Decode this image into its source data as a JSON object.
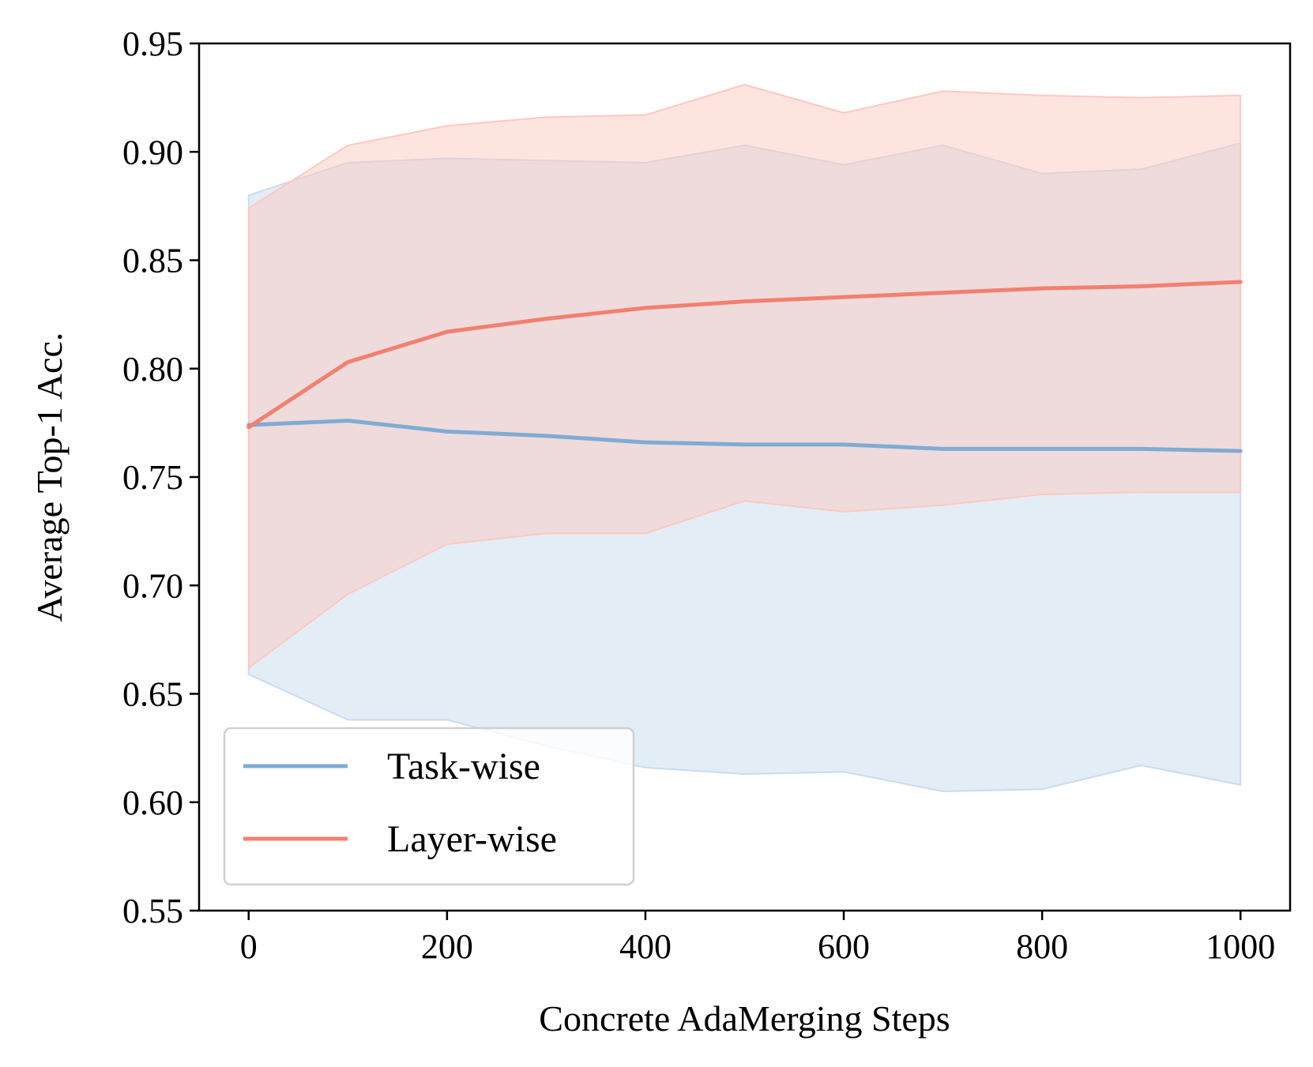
{
  "chart_data": {
    "type": "line",
    "xlabel": "Concrete AdaMerging Steps",
    "ylabel": "Average Top-1 Acc.",
    "xlim": [
      -50,
      1050
    ],
    "ylim": [
      0.55,
      0.95
    ],
    "xticks": [
      "0",
      "200",
      "400",
      "600",
      "800",
      "1000"
    ],
    "yticks": [
      "0.55",
      "0.60",
      "0.65",
      "0.70",
      "0.75",
      "0.80",
      "0.85",
      "0.90",
      "0.95"
    ],
    "grid": false,
    "legend_position": "lower-left",
    "x": [
      0,
      100,
      200,
      300,
      400,
      500,
      600,
      700,
      800,
      900,
      1000
    ],
    "series": [
      {
        "name": "Task-wise",
        "color": "#7eacd4",
        "band_color": "#c8dcee",
        "values": [
          0.774,
          0.776,
          0.771,
          0.769,
          0.766,
          0.765,
          0.765,
          0.763,
          0.763,
          0.763,
          0.762
        ],
        "upper": [
          0.88,
          0.895,
          0.897,
          0.896,
          0.895,
          0.903,
          0.894,
          0.903,
          0.89,
          0.892,
          0.904
        ],
        "lower": [
          0.659,
          0.638,
          0.638,
          0.626,
          0.616,
          0.613,
          0.614,
          0.605,
          0.606,
          0.617,
          0.608
        ]
      },
      {
        "name": "Layer-wise",
        "color": "#f28070",
        "band_color": "#fcc9c0",
        "values": [
          0.773,
          0.803,
          0.817,
          0.823,
          0.828,
          0.831,
          0.833,
          0.835,
          0.837,
          0.838,
          0.84
        ],
        "upper": [
          0.874,
          0.903,
          0.912,
          0.916,
          0.917,
          0.931,
          0.918,
          0.928,
          0.926,
          0.925,
          0.926
        ],
        "lower": [
          0.662,
          0.696,
          0.719,
          0.724,
          0.724,
          0.739,
          0.734,
          0.737,
          0.742,
          0.743,
          0.743
        ]
      }
    ]
  }
}
